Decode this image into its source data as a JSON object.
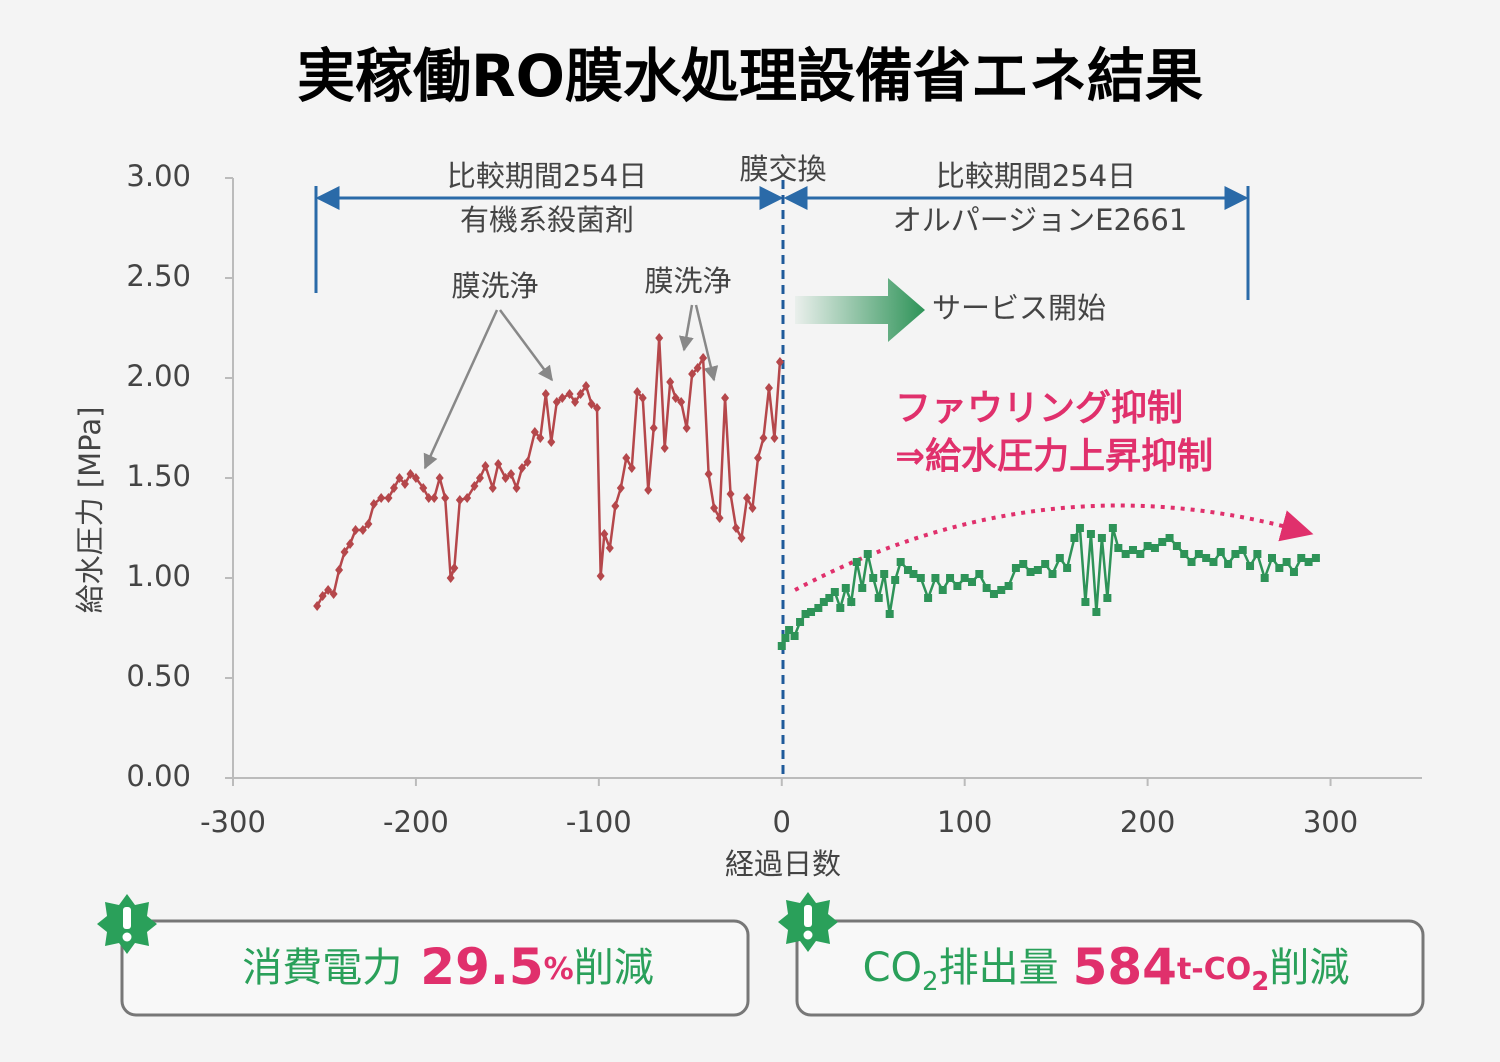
{
  "chart_data": {
    "type": "line",
    "title": "実稼働RO膜水処理設備省エネ結果",
    "x_label": "経過日数",
    "y_label": "給水圧力 [MPa]",
    "xlim": [
      -300,
      350
    ],
    "xticks": [
      -300,
      -200,
      -100,
      0,
      100,
      200,
      300
    ],
    "ylim": [
      0,
      3
    ],
    "yticks": [
      {
        "value": 0,
        "label": "0.00"
      },
      {
        "value": 0.5,
        "label": "0.50"
      },
      {
        "value": 1,
        "label": "1.00"
      },
      {
        "value": 1.5,
        "label": "1.50"
      },
      {
        "value": 2,
        "label": "2.00"
      },
      {
        "value": 2.5,
        "label": "2.50"
      },
      {
        "value": 3,
        "label": "3.00"
      }
    ],
    "grid": false,
    "series": [
      {
        "color": "#b5474b",
        "marker": "diamond",
        "x": [
          -254,
          -251,
          -248,
          -245,
          -242,
          -239,
          -236,
          -233,
          -229,
          -226,
          -223,
          -219,
          -215,
          -212,
          -209,
          -206,
          -203,
          -200,
          -196,
          -193,
          -190,
          -187,
          -184,
          -181,
          -179,
          -176,
          -172,
          -168,
          -165,
          -162,
          -158,
          -155,
          -151,
          -148,
          -145,
          -142,
          -139,
          -135,
          -132,
          -129,
          -126,
          -123,
          -120,
          -116,
          -113,
          -110,
          -107,
          -104,
          -101,
          -99,
          -97,
          -94,
          -91,
          -88,
          -85,
          -82,
          -79,
          -76,
          -73,
          -70,
          -67,
          -64,
          -61,
          -58,
          -55,
          -52,
          -49,
          -46,
          -43,
          -40,
          -37,
          -34,
          -31,
          -28,
          -25,
          -22,
          -19,
          -16,
          -13,
          -10,
          -7,
          -4,
          -1
        ],
        "values": [
          0.86,
          0.91,
          0.94,
          0.92,
          1.04,
          1.13,
          1.17,
          1.24,
          1.24,
          1.27,
          1.37,
          1.4,
          1.4,
          1.45,
          1.5,
          1.47,
          1.52,
          1.5,
          1.45,
          1.4,
          1.4,
          1.5,
          1.4,
          1.0,
          1.05,
          1.39,
          1.4,
          1.46,
          1.5,
          1.56,
          1.45,
          1.57,
          1.5,
          1.52,
          1.45,
          1.55,
          1.58,
          1.73,
          1.7,
          1.92,
          1.68,
          1.88,
          1.9,
          1.92,
          1.88,
          1.92,
          1.96,
          1.87,
          1.85,
          1.01,
          1.22,
          1.15,
          1.36,
          1.45,
          1.6,
          1.55,
          1.93,
          1.9,
          1.44,
          1.75,
          2.2,
          1.65,
          1.98,
          1.9,
          1.88,
          1.75,
          2.02,
          2.05,
          2.1,
          1.52,
          1.35,
          1.3,
          1.9,
          1.42,
          1.25,
          1.2,
          1.4,
          1.35,
          1.6,
          1.7,
          1.95,
          1.7,
          2.08
        ]
      },
      {
        "color": "#2e9358",
        "marker": "square",
        "x": [
          0,
          2,
          4,
          7,
          10,
          13,
          16,
          20,
          23,
          26,
          29,
          32,
          35,
          38,
          41,
          44,
          47,
          50,
          53,
          56,
          59,
          62,
          65,
          69,
          72,
          76,
          80,
          84,
          88,
          92,
          96,
          100,
          104,
          108,
          112,
          116,
          120,
          124,
          128,
          132,
          136,
          140,
          144,
          148,
          152,
          156,
          160,
          163,
          166,
          169,
          172,
          175,
          178,
          181,
          184,
          188,
          192,
          196,
          200,
          204,
          208,
          212,
          216,
          220,
          224,
          228,
          232,
          236,
          240,
          244,
          248,
          252,
          256,
          260,
          264,
          268,
          272,
          276,
          280,
          284,
          288,
          292
        ],
        "values": [
          0.66,
          0.7,
          0.74,
          0.71,
          0.78,
          0.82,
          0.83,
          0.85,
          0.88,
          0.9,
          0.93,
          0.85,
          0.95,
          0.88,
          1.08,
          0.95,
          1.12,
          1.0,
          0.9,
          1.02,
          0.82,
          0.99,
          1.08,
          1.04,
          1.02,
          1.0,
          0.9,
          1.0,
          0.94,
          1.0,
          0.96,
          1.0,
          0.98,
          1.02,
          0.95,
          0.92,
          0.94,
          0.96,
          1.05,
          1.07,
          1.03,
          1.04,
          1.07,
          1.02,
          1.1,
          1.05,
          1.2,
          1.25,
          0.88,
          1.22,
          0.83,
          1.2,
          0.9,
          1.25,
          1.15,
          1.12,
          1.14,
          1.12,
          1.16,
          1.15,
          1.18,
          1.2,
          1.16,
          1.12,
          1.08,
          1.12,
          1.1,
          1.08,
          1.13,
          1.07,
          1.12,
          1.14,
          1.06,
          1.12,
          1.0,
          1.1,
          1.05,
          1.08,
          1.03,
          1.1,
          1.08,
          1.1
        ]
      }
    ],
    "annotations": [
      "比較期間254日",
      "有機系殺菌剤",
      "膜交換",
      "比較期間254日",
      "オルパージョンE2661",
      "膜洗浄",
      "膜洗浄",
      "サービス開始",
      "ファウリング抑制",
      "⇒給水圧力上昇抑制"
    ]
  },
  "callouts": [
    {
      "parts": [
        "消費電力",
        "29.5",
        "%",
        "削減"
      ]
    },
    {
      "parts": [
        "CO",
        "2",
        "排出量",
        "584",
        "t-CO",
        "2",
        "削減"
      ]
    }
  ]
}
